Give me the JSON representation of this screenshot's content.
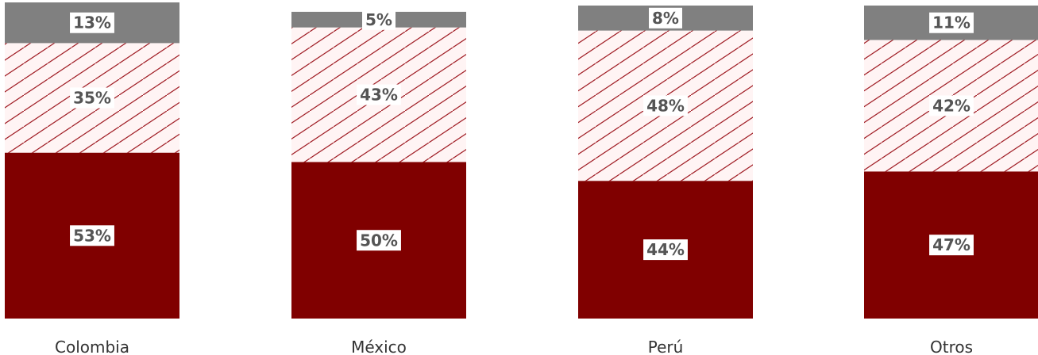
{
  "colors": {
    "bottom": "#800000",
    "hatch": "#a01c24",
    "hatch_bg": "#fff4f4",
    "top": "#808080",
    "label_box": "#ffffff",
    "label_text": "#555555",
    "category_text": "#333333"
  },
  "chart_data": {
    "type": "bar",
    "stacked": true,
    "orientation": "vertical",
    "categories": [
      "Colombia",
      "México",
      "Perú",
      "Otros"
    ],
    "series": [
      {
        "values": [
          53,
          50,
          44,
          47
        ],
        "labels": [
          "53%",
          "50%",
          "44%",
          "47%"
        ],
        "fill": "solid-dark-red"
      },
      {
        "values": [
          35,
          43,
          48,
          42
        ],
        "labels": [
          "35%",
          "43%",
          "48%",
          "42%"
        ],
        "fill": "diagonal-hatch-red"
      },
      {
        "values": [
          13,
          5,
          8,
          11
        ],
        "labels": [
          "13%",
          "5%",
          "8%",
          "11%"
        ],
        "fill": "solid-gray"
      }
    ],
    "ylim": [
      0,
      100
    ],
    "grid": false,
    "legend": "none",
    "title": "",
    "xlabel": "",
    "ylabel": ""
  }
}
